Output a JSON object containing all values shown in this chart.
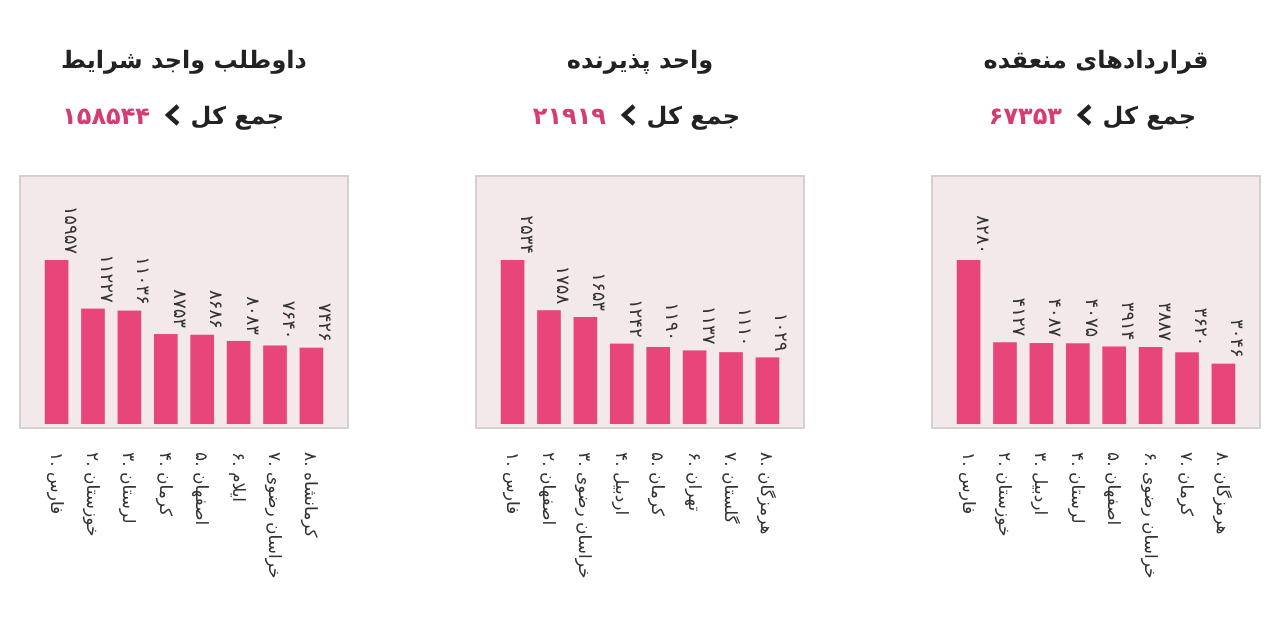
{
  "chart_data": [
    {
      "type": "bar",
      "title": "قراردادهای منعقده",
      "subtitle": "جمع کل",
      "annotations": [
        "۶۷۳۵۳"
      ],
      "categories": [
        "۱. فارس",
        "۲. خوزستان",
        "۳. اردبیل",
        "۴. لرستان",
        "۵. اصفهان",
        "۶. خراسان رضوی",
        "۷. کرمان",
        "۸. هرمزگان"
      ],
      "values": [
        8280,
        4127,
        4087,
        4075,
        3914,
        3887,
        3620,
        3046
      ],
      "value_labels": [
        "۸۲۸۰",
        "۴۱۲۷",
        "۴۰۸۷",
        "۴۰۷۵",
        "۳۹۱۴",
        "۳۸۸۷",
        "۳۶۲۰",
        "۳۰۴۶"
      ],
      "color": "#e8457a"
    },
    {
      "type": "bar",
      "title": "واحد پذیرنده",
      "subtitle": "جمع کل",
      "annotations": [
        "۲۱۹۱۹"
      ],
      "categories": [
        "۱. فارس",
        "۲. اصفهان",
        "۳. خراسان رضوی",
        "۴. اردبیل",
        "۵. کرمان",
        "۶. تهران",
        "۷. گلستان",
        "۸. هرمزگان"
      ],
      "values": [
        2534,
        1758,
        1653,
        1242,
        1190,
        1137,
        1110,
        1029
      ],
      "value_labels": [
        "۲۵۳۴",
        "۱۷۵۸",
        "۱۶۵۳",
        "۱۲۴۲",
        "۱۱۹۰",
        "۱۱۳۷",
        "۱۱۱۰",
        "۱۰۲۹"
      ],
      "color": "#e8457a"
    },
    {
      "type": "bar",
      "title": "داوطلب واجد شرایط",
      "subtitle": "جمع کل",
      "annotations": [
        "۱۵۸۵۴۴"
      ],
      "categories": [
        "۱. فارس",
        "۲. خوزستان",
        "۳. لرستان",
        "۴. کرمان",
        "۵. اصفهان",
        "۶. ایلام",
        "۷. خراسان رضوی",
        "۸. کرمانشاه"
      ],
      "values": [
        15957,
        11227,
        11036,
        8753,
        8686,
        8083,
        7640,
        7426
      ],
      "value_labels": [
        "۱۵۹۵۷",
        "۱۱۲۲۷",
        "۱۱۰۳۶",
        "۸۷۵۳",
        "۸۶۸۶",
        "۸۰۸۳",
        "۷۶۴۰",
        "۷۴۲۶"
      ],
      "color": "#e8457a"
    }
  ]
}
